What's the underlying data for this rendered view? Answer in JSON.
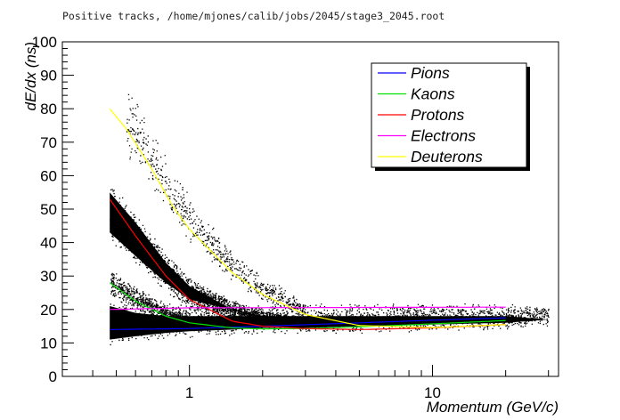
{
  "title": "Positive tracks, /home/mjones/calib/jobs/2045/stage3_2045.root",
  "chart_data": {
    "type": "scatter",
    "xscale": "log",
    "xlim": [
      0.3,
      33
    ],
    "ylim": [
      0,
      100
    ],
    "xlabel": "Momentum (GeV/c)",
    "ylabel": "dE/dx  (ns)",
    "x_tick_labels": [
      {
        "value": 1,
        "label": "1"
      },
      {
        "value": 10,
        "label": "10"
      }
    ],
    "y_ticks": [
      0,
      10,
      20,
      30,
      40,
      50,
      60,
      70,
      80,
      90,
      100
    ],
    "grid": false,
    "legend_position": "top-right",
    "point_color": "#000000",
    "series": [
      {
        "name": "Pions",
        "color": "#0000ff",
        "x": [
          0.47,
          1,
          2,
          5,
          10,
          20
        ],
        "y": [
          14,
          14.3,
          15,
          16,
          16.8,
          17.5
        ]
      },
      {
        "name": "Kaons",
        "color": "#00e000",
        "x": [
          0.47,
          0.6,
          0.8,
          1.0,
          1.5,
          2,
          3,
          5,
          10,
          20
        ],
        "y": [
          28,
          22.5,
          18,
          16,
          14.5,
          14.2,
          14.3,
          14.8,
          15.7,
          16.7
        ]
      },
      {
        "name": "Protons",
        "color": "#ff0000",
        "x": [
          0.47,
          0.6,
          0.8,
          1.0,
          1.5,
          2,
          3,
          5,
          10,
          20
        ],
        "y": [
          53,
          42,
          30,
          23,
          16.5,
          15,
          14.3,
          14,
          14.5,
          15.5
        ]
      },
      {
        "name": "Electrons",
        "color": "#ff00ff",
        "x": [
          0.47,
          1,
          5,
          20
        ],
        "y": [
          20,
          20.5,
          20.6,
          20.7
        ]
      },
      {
        "name": "Deuterons",
        "color": "#ffff00",
        "x": [
          0.47,
          0.55,
          0.7,
          0.85,
          1.0,
          1.5,
          2,
          3,
          5,
          10,
          20
        ],
        "y": [
          80,
          74,
          62,
          51,
          44,
          31,
          24.5,
          18.5,
          15.2,
          14.6,
          15.5
        ]
      }
    ],
    "scatter_bands": [
      {
        "x": [
          0.47,
          0.6,
          0.8,
          1,
          1.5,
          2,
          3,
          5,
          10,
          20,
          30
        ],
        "y_low": [
          9,
          10,
          11,
          11.5,
          12,
          12.5,
          12.5,
          13,
          13.5,
          14,
          15
        ],
        "y_high": [
          25,
          23,
          22,
          22,
          22,
          22,
          22,
          22,
          22,
          22,
          21
        ],
        "density": "high"
      },
      {
        "x": [
          0.47,
          0.6,
          0.8,
          1.0,
          1.5,
          2,
          3
        ],
        "y_low": [
          40,
          33,
          25,
          20,
          17,
          15,
          14
        ],
        "y_high": [
          58,
          49,
          37,
          30,
          23,
          20,
          18
        ],
        "density": "high"
      },
      {
        "x": [
          0.47,
          0.6,
          0.8,
          1.0
        ],
        "y_low": [
          24,
          20,
          16,
          14
        ],
        "y_high": [
          33,
          27,
          22,
          19
        ],
        "density": "medium"
      },
      {
        "x": [
          0.55,
          0.7,
          0.85,
          1.0,
          1.5,
          2,
          3
        ],
        "y_low": [
          65,
          56,
          46,
          40,
          28,
          22,
          17
        ],
        "y_high": [
          88,
          75,
          62,
          54,
          38,
          30,
          23
        ],
        "density": "low"
      }
    ]
  }
}
